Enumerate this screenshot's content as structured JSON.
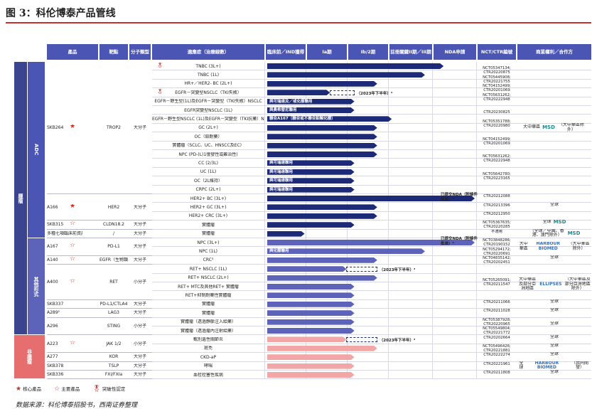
{
  "figure": {
    "label": "图 3：",
    "title": "科伦博泰产品管线"
  },
  "headers": [
    "產品",
    "靶點",
    "分子類型",
    "適應症（治療線數）",
    "臨床前／IND獲得",
    "Ia期",
    "Ib/2期",
    "註冊關鍵II期／III期",
    "NDA申請",
    "NCT/CTR編號",
    "商業權利／合作方"
  ],
  "groups": [
    {
      "label": "腫瘤",
      "color": "#3b448f"
    },
    {
      "label": "ADC",
      "color": "#4a55b4"
    },
    {
      "label": "其他形式",
      "color": "#5c63b8"
    },
    {
      "label": "非腫瘤",
      "color": "#e66e6e"
    }
  ],
  "indications": [
    "TNBC (3L+)",
    "TNBC (1L)",
    "HR+／HER2- BC (2L+)",
    "EGFR－突變型NSCLC（TKI失敗）",
    "EGFR－野生型(1L)及EGFR－突變型（TKI失敗）NSCLC",
    "EGFR突變型NSCLC (1L)",
    "EGFR－野生型NSCLC (1L)及EGFR－突變型（TKI抗藥）NSCLC",
    "GC (2L+)",
    "OC（鉑耐藥）",
    "實體瘤（SCLC、UC、HNSCC及EC）",
    "NPC (PD-(L)1復發性或難治性)",
    "CC (2/3L)",
    "UC (1L)",
    "OC（2L維持）",
    "CRPC (2L+)",
    "HER2+ BC (3L+)",
    "HER2+ GC (3L+)",
    "HER2+ CRC (3L+)",
    "實體瘤",
    "實體瘤",
    "NPC (3L+)",
    "NPC (1L)",
    "CRC³",
    "RET+ NSCLC (1L)",
    "RET+ NSCLC (2L+)",
    "RET+ MTC及其他RET+ 實體瘤",
    "RET+抑制耐藥性實體瘤",
    "實體瘤",
    "實體瘤",
    "實體瘤（透過靜脈注入給藥）",
    "實體瘤（透過瘤內注射給藥）",
    "甄別遺性關節炎",
    "斑禿",
    "CKD-aP",
    "哮喘",
    "血栓栓塞性疾病"
  ],
  "products": [
    {
      "name": "SKB264",
      "star": "core",
      "target": "TROP2",
      "type": "大分子",
      "rows": 15
    },
    {
      "name": "A166",
      "star": "core",
      "target": "HER2",
      "type": "大分子",
      "rows": 3
    },
    {
      "name": "SKB315",
      "star": "main",
      "target": "CLDN18.2",
      "type": "大分子",
      "rows": 1
    },
    {
      "name": "多種七項臨床前資產",
      "star": "",
      "target": "/",
      "type": "大分子",
      "rows": 1
    },
    {
      "name": "A167",
      "star": "main",
      "target": "PD-L1",
      "type": "大分子",
      "rows": 2
    },
    {
      "name": "A140",
      "star": "main",
      "target": "EGFR（生物類似藥）",
      "type": "大分子",
      "rows": 1
    },
    {
      "name": "A400",
      "star": "main",
      "target": "RET",
      "type": "小分子",
      "rows": 4
    },
    {
      "name": "SKB337",
      "star": "",
      "target": "PD-L1/CTLA4",
      "type": "大分子",
      "rows": 1
    },
    {
      "name": "A289²",
      "star": "",
      "target": "LAG3",
      "type": "大分子",
      "rows": 1
    },
    {
      "name": "A296",
      "star": "",
      "target": "STING",
      "type": "小分子",
      "rows": 2
    },
    {
      "name": "A223",
      "star": "main",
      "target": "JAK 1/2",
      "type": "小分子",
      "rows": 2
    },
    {
      "name": "A277",
      "star": "",
      "target": "KOR",
      "type": "大分子",
      "rows": 1
    },
    {
      "name": "SKB378",
      "star": "",
      "target": "TSLP",
      "type": "大分子",
      "rows": 1
    },
    {
      "name": "SKB336",
      "star": "",
      "target": "FXI/FXIa",
      "type": "大分子",
      "rows": 1
    }
  ],
  "bars": [
    {
      "row": 0,
      "end": 0.85,
      "style": "dark",
      "label": ""
    },
    {
      "row": 1,
      "end": 0.76,
      "style": "dark",
      "label": ""
    },
    {
      "row": 2,
      "end": 0.53,
      "style": "dark",
      "label": ""
    },
    {
      "row": 3,
      "end": 0.42,
      "style": "dark",
      "label": "",
      "dash": true,
      "note": "（2023年下半年）³"
    },
    {
      "row": 4,
      "end": 0.42,
      "style": "dark",
      "label": "與可瑞達及／或化療聯用"
    },
    {
      "row": 5,
      "end": 0.42,
      "style": "dark",
      "label": "與奧希替尼聯用"
    },
    {
      "row": 6,
      "end": 0.6,
      "style": "dark",
      "label": "聯合A167（聯合或不聯合鉑類化療）"
    },
    {
      "row": 7,
      "end": 0.53,
      "style": "dark",
      "label": ""
    },
    {
      "row": 8,
      "end": 0.53,
      "style": "dark",
      "label": ""
    },
    {
      "row": 9,
      "end": 0.53,
      "style": "dark",
      "label": ""
    },
    {
      "row": 10,
      "end": 0.53,
      "style": "dark",
      "label": ""
    },
    {
      "row": 11,
      "end": 0.42,
      "style": "dark",
      "label": "與可瑞達聯用"
    },
    {
      "row": 12,
      "end": 0.42,
      "style": "dark",
      "label": "與可瑞達聯用"
    },
    {
      "row": 13,
      "end": 0.42,
      "style": "dark",
      "label": "與可瑞達聯用"
    },
    {
      "row": 14,
      "end": 0.42,
      "style": "dark",
      "label": "與可瑞達聯用"
    },
    {
      "row": 15,
      "end": 1.0,
      "style": "dark",
      "label": "",
      "note": "已提交NDA（附條件批准）⁴"
    },
    {
      "row": 16,
      "end": 0.53,
      "style": "dark",
      "label": ""
    },
    {
      "row": 17,
      "end": 0.53,
      "style": "dark",
      "label": ""
    },
    {
      "row": 18,
      "end": 0.42,
      "style": "dark",
      "label": ""
    },
    {
      "row": 19,
      "end": 0.18,
      "style": "dark",
      "label": ""
    },
    {
      "row": 20,
      "end": 1.0,
      "style": "mid",
      "label": "",
      "note": "已提交NDA（附條件批准）⁵"
    },
    {
      "row": 21,
      "end": 0.76,
      "style": "mid",
      "label": "與化療聯用"
    },
    {
      "row": 22,
      "end": 0.53,
      "style": "mid",
      "label": ""
    },
    {
      "row": 23,
      "end": 0.53,
      "style": "mid",
      "label": "",
      "dash": true,
      "note": "（2023年下半年）³"
    },
    {
      "row": 24,
      "end": 0.53,
      "style": "mid",
      "label": ""
    },
    {
      "row": 25,
      "end": 0.42,
      "style": "mid",
      "label": ""
    },
    {
      "row": 26,
      "end": 0.42,
      "style": "mid",
      "label": ""
    },
    {
      "row": 27,
      "end": 0.42,
      "style": "mid",
      "label": ""
    },
    {
      "row": 28,
      "end": 0.42,
      "style": "mid",
      "label": ""
    },
    {
      "row": 29,
      "end": 0.42,
      "style": "mid",
      "label": ""
    },
    {
      "row": 30,
      "end": 0.42,
      "style": "mid",
      "label": ""
    },
    {
      "row": 31,
      "end": 0.53,
      "style": "pink",
      "label": "",
      "dash": true,
      "note": "（2023年下半年）³"
    },
    {
      "row": 32,
      "end": 0.53,
      "style": "pink",
      "label": ""
    },
    {
      "row": 33,
      "end": 0.42,
      "style": "pink",
      "label": ""
    },
    {
      "row": 34,
      "end": 0.42,
      "style": "pink",
      "label": ""
    },
    {
      "row": 35,
      "end": 0.42,
      "style": "pink",
      "label": ""
    }
  ],
  "nct": [
    {
      "rows": [
        0,
        1
      ],
      "text": "NCT05347134; CTR20220875"
    },
    {
      "rows": [
        1,
        2
      ],
      "text": "NCT05445908; CTR20221755"
    },
    {
      "rows": [
        2,
        3
      ],
      "text": "NCT04152499; CTR20201069"
    },
    {
      "rows": [
        3,
        4
      ],
      "text": "NCT05631262; CTR20222948"
    },
    {
      "rows": [
        5,
        6
      ],
      "text": "CTR20230825"
    },
    {
      "rows": [
        6,
        7
      ],
      "text": "NCT05351788; CTR20220980"
    },
    {
      "rows": [
        8,
        9
      ],
      "text": "NCT04152499; CTR20201069"
    },
    {
      "rows": [
        10,
        11
      ],
      "text": "NCT05631262; CTR20222948"
    },
    {
      "rows": [
        12,
        13
      ],
      "text": "NCT05642780; CTR20223165"
    },
    {
      "rows": [
        15,
        15
      ],
      "text": "CTR20212088"
    },
    {
      "rows": [
        16,
        16
      ],
      "text": "CTR20213396"
    },
    {
      "rows": [
        17,
        17
      ],
      "text": "CTR20212950"
    },
    {
      "rows": [
        18,
        18
      ],
      "text": "NCT05367635; CTR20220285"
    },
    {
      "rows": [
        19,
        19
      ],
      "text": "不適用"
    },
    {
      "rows": [
        20,
        20
      ],
      "text": "NCT03848286; CTR20190152"
    },
    {
      "rows": [
        21,
        21
      ],
      "text": "NCT05294172; CTR20220691"
    },
    {
      "rows": [
        22,
        22
      ],
      "text": "NCT04835142; CTR20202451"
    },
    {
      "rows": [
        24,
        25
      ],
      "text": "NCT05265091; CTR20211547"
    },
    {
      "rows": [
        27,
        27
      ],
      "text": "CTR20211066"
    },
    {
      "rows": [
        28,
        28
      ],
      "text": "CTR20211028"
    },
    {
      "rows": [
        29,
        29
      ],
      "text": "NCT05387928; CTR20220965"
    },
    {
      "rows": [
        30,
        30
      ],
      "text": "NCT05549804; CTR20221772"
    },
    {
      "rows": [
        31,
        31
      ],
      "text": "CTR20202664"
    },
    {
      "rows": [
        32,
        32
      ],
      "text": "NCT05496426; CTR20221881"
    },
    {
      "rows": [
        33,
        33
      ],
      "text": "CTR20222274"
    },
    {
      "rows": [
        34,
        34
      ],
      "text": "CTR20221961"
    },
    {
      "rows": [
        35,
        35
      ],
      "text": "CTR20211808"
    }
  ],
  "rights": [
    {
      "rows": [
        0,
        14
      ],
      "text": "大中華區",
      "partner": "MSD",
      "partner_note": "（大中華區除外）"
    },
    {
      "rows": [
        15,
        17
      ],
      "text": "全球",
      "partner": "",
      "partner_note": ""
    },
    {
      "rows": [
        18,
        18
      ],
      "text": "全球",
      "partner": "MSD",
      "partner_note": ""
    },
    {
      "rows": [
        19,
        19
      ],
      "text": "（全球／中國、香港、澳門除外）",
      "partner": "MSD",
      "partner_note": ""
    },
    {
      "rows": [
        20,
        21
      ],
      "text": "大中華區",
      "partner": "HARBOUR BIOMED",
      "partner_note": "（大中華區除外）"
    },
    {
      "rows": [
        22,
        22
      ],
      "text": "全球",
      "partner": "",
      "partner_note": ""
    },
    {
      "rows": [
        23,
        26
      ],
      "text": "大中華區及部分亞洲地區",
      "partner": "ELLIPSES",
      "partner_note": "（大中華區及部分亞洲地區除外）"
    },
    {
      "rows": [
        27,
        27
      ],
      "text": "全球",
      "partner": "",
      "partner_note": ""
    },
    {
      "rows": [
        28,
        28
      ],
      "text": "全球",
      "partner": "",
      "partner_note": ""
    },
    {
      "rows": [
        29,
        30
      ],
      "text": "全球",
      "partner": "",
      "partner_note": ""
    },
    {
      "rows": [
        31,
        31
      ],
      "text": "全球",
      "partner": "",
      "partner_note": ""
    },
    {
      "rows": [
        32,
        32
      ],
      "text": "全球",
      "partner": "",
      "partner_note": ""
    },
    {
      "rows": [
        33,
        33
      ],
      "text": "全球",
      "partner": "",
      "partner_note": ""
    },
    {
      "rows": [
        34,
        34
      ],
      "text": "全球",
      "partner": "HARBOUR BIOMED",
      "partner_note": "（共同開發）"
    },
    {
      "rows": [
        35,
        35
      ],
      "text": "全球",
      "partner": "",
      "partner_note": ""
    }
  ],
  "legend": {
    "core": "核心產品",
    "main": "主要產品",
    "breakthrough": "突破性認定"
  },
  "source": "数据来源：科伦博泰招股书，西南证券整理",
  "colors": {
    "header": "#4a55b4",
    "dark": "#1d2a78",
    "mid": "#5c63b8",
    "pink": "#f2a6a6",
    "red": "#c9302c"
  }
}
